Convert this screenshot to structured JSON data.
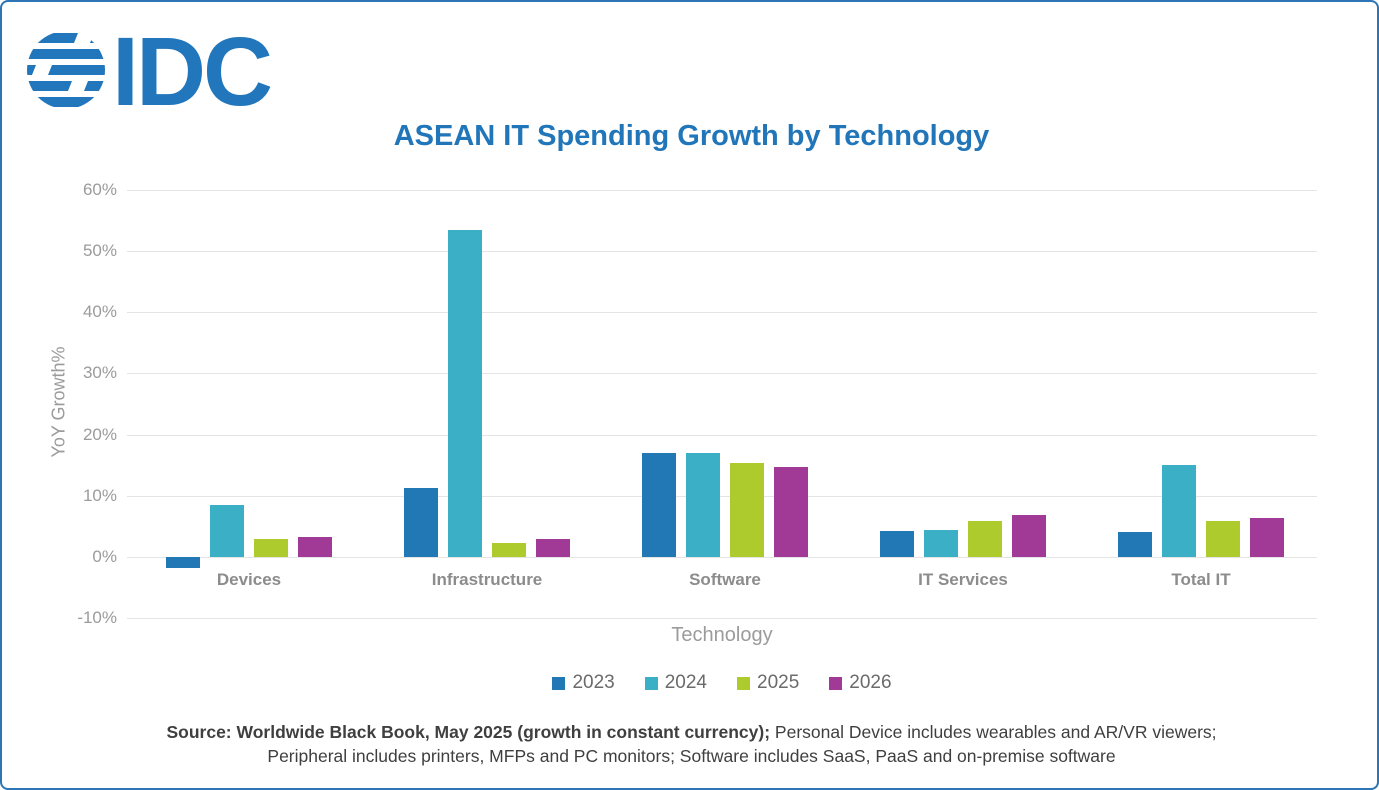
{
  "logo": {
    "brand": "IDC",
    "color": "#2277BC"
  },
  "title": "ASEAN IT Spending Growth by Technology",
  "chart_data": {
    "type": "bar",
    "title": "ASEAN IT Spending Growth by Technology",
    "categories": [
      "Devices",
      "Infrastructure",
      "Software",
      "IT Services",
      "Total IT"
    ],
    "series": [
      {
        "name": "2023",
        "color": "#2278B5",
        "values": [
          -1.8,
          11.2,
          17.0,
          4.3,
          4.0
        ]
      },
      {
        "name": "2024",
        "color": "#3AAFC6",
        "values": [
          8.5,
          53.5,
          17.0,
          4.4,
          15.1
        ]
      },
      {
        "name": "2025",
        "color": "#AECB2D",
        "values": [
          3.0,
          2.2,
          15.3,
          5.9,
          5.9
        ]
      },
      {
        "name": "2026",
        "color": "#A03A96",
        "values": [
          3.3,
          3.0,
          14.7,
          6.8,
          6.4
        ]
      }
    ],
    "xlabel": "Technology",
    "ylabel": "YoY Growth%",
    "ylim": [
      -10,
      60
    ],
    "ytick_step": 10,
    "yticks": [
      "60%",
      "50%",
      "40%",
      "30%",
      "20%",
      "10%",
      "0%",
      "-10%"
    ],
    "grid": true,
    "legend_position": "bottom"
  },
  "footer": {
    "source_bold": "Source: Worldwide Black Book, May 2025 (growth in constant currency);",
    "line1_rest": " Personal Device includes wearables and AR/VR viewers;",
    "line2": "Peripheral includes printers, MFPs and PC monitors; Software includes SaaS, PaaS and on-premise software"
  },
  "colors": {
    "brand_blue": "#2176B9",
    "frame_border": "#2E75B6",
    "gridline": "#E4E4E4",
    "axis_text": "#9B9B9B",
    "category_text": "#8C8C8C",
    "legend_text": "#6B6B6B",
    "footer_text": "#3F3F3F"
  }
}
